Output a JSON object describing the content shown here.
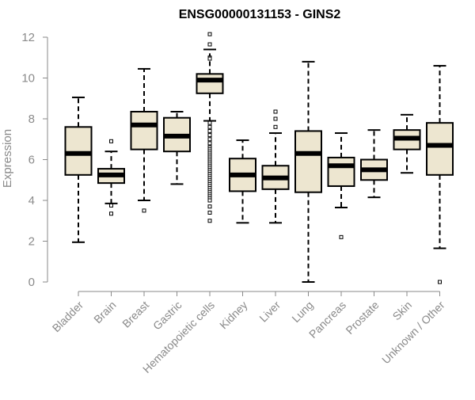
{
  "chart_data": {
    "type": "box",
    "title": "ENSG00000131153 - GINS2",
    "ylabel": "Expression",
    "ylim": [
      0,
      12
    ],
    "yticks": [
      0,
      2,
      4,
      6,
      8,
      10,
      12
    ],
    "grid": false,
    "box_fill": "#ede6d0",
    "box_stroke": "#000000",
    "text_color": "#8a8a8a",
    "boxes": [
      {
        "label": "Bladder",
        "whisker_low": 1.95,
        "q1": 5.25,
        "median": 6.3,
        "q3": 7.6,
        "whisker_high": 9.05,
        "outliers": []
      },
      {
        "label": "Brain",
        "whisker_low": 3.85,
        "q1": 4.85,
        "median": 5.25,
        "q3": 5.55,
        "whisker_high": 6.4,
        "outliers": [
          6.9,
          3.75,
          3.35
        ]
      },
      {
        "label": "Breast",
        "whisker_low": 4.0,
        "q1": 6.5,
        "median": 7.7,
        "q3": 8.35,
        "whisker_high": 10.45,
        "outliers": [
          3.5
        ]
      },
      {
        "label": "Gastric",
        "whisker_low": 4.8,
        "q1": 6.4,
        "median": 7.15,
        "q3": 8.05,
        "whisker_high": 8.35,
        "outliers": []
      },
      {
        "label": "Hematopoietic cells",
        "whisker_low": 7.9,
        "q1": 9.25,
        "median": 9.9,
        "q3": 10.2,
        "whisker_high": 11.4,
        "outliers": [
          12.15,
          11.65,
          11.0,
          10.95,
          7.8,
          7.6,
          7.4,
          7.2,
          7.0,
          6.8,
          6.6,
          6.5,
          6.4,
          6.3,
          6.2,
          6.1,
          6.0,
          5.9,
          5.8,
          5.7,
          5.6,
          5.5,
          5.4,
          5.3,
          5.2,
          5.1,
          5.0,
          4.9,
          4.8,
          4.7,
          4.6,
          4.5,
          4.4,
          4.3,
          4.2,
          4.1,
          4.0,
          3.7,
          3.4,
          3.0
        ]
      },
      {
        "label": "Kidney",
        "whisker_low": 2.9,
        "q1": 4.45,
        "median": 5.25,
        "q3": 6.05,
        "whisker_high": 6.95,
        "outliers": []
      },
      {
        "label": "Liver",
        "whisker_low": 2.9,
        "q1": 4.55,
        "median": 5.1,
        "q3": 5.7,
        "whisker_high": 7.3,
        "outliers": [
          8.35,
          8.0,
          7.6
        ]
      },
      {
        "label": "Lung",
        "whisker_low": 0.0,
        "q1": 4.4,
        "median": 6.3,
        "q3": 7.4,
        "whisker_high": 10.8,
        "outliers": []
      },
      {
        "label": "Pancreas",
        "whisker_low": 3.65,
        "q1": 4.7,
        "median": 5.7,
        "q3": 6.1,
        "whisker_high": 7.3,
        "outliers": [
          2.2
        ]
      },
      {
        "label": "Prostate",
        "whisker_low": 4.15,
        "q1": 5.0,
        "median": 5.5,
        "q3": 6.0,
        "whisker_high": 7.45,
        "outliers": []
      },
      {
        "label": "Skin",
        "whisker_low": 5.35,
        "q1": 6.5,
        "median": 7.05,
        "q3": 7.45,
        "whisker_high": 8.2,
        "outliers": []
      },
      {
        "label": "Unknown / Other",
        "whisker_low": 1.65,
        "q1": 5.25,
        "median": 6.7,
        "q3": 7.8,
        "whisker_high": 10.6,
        "outliers": [
          0.0
        ]
      }
    ]
  }
}
